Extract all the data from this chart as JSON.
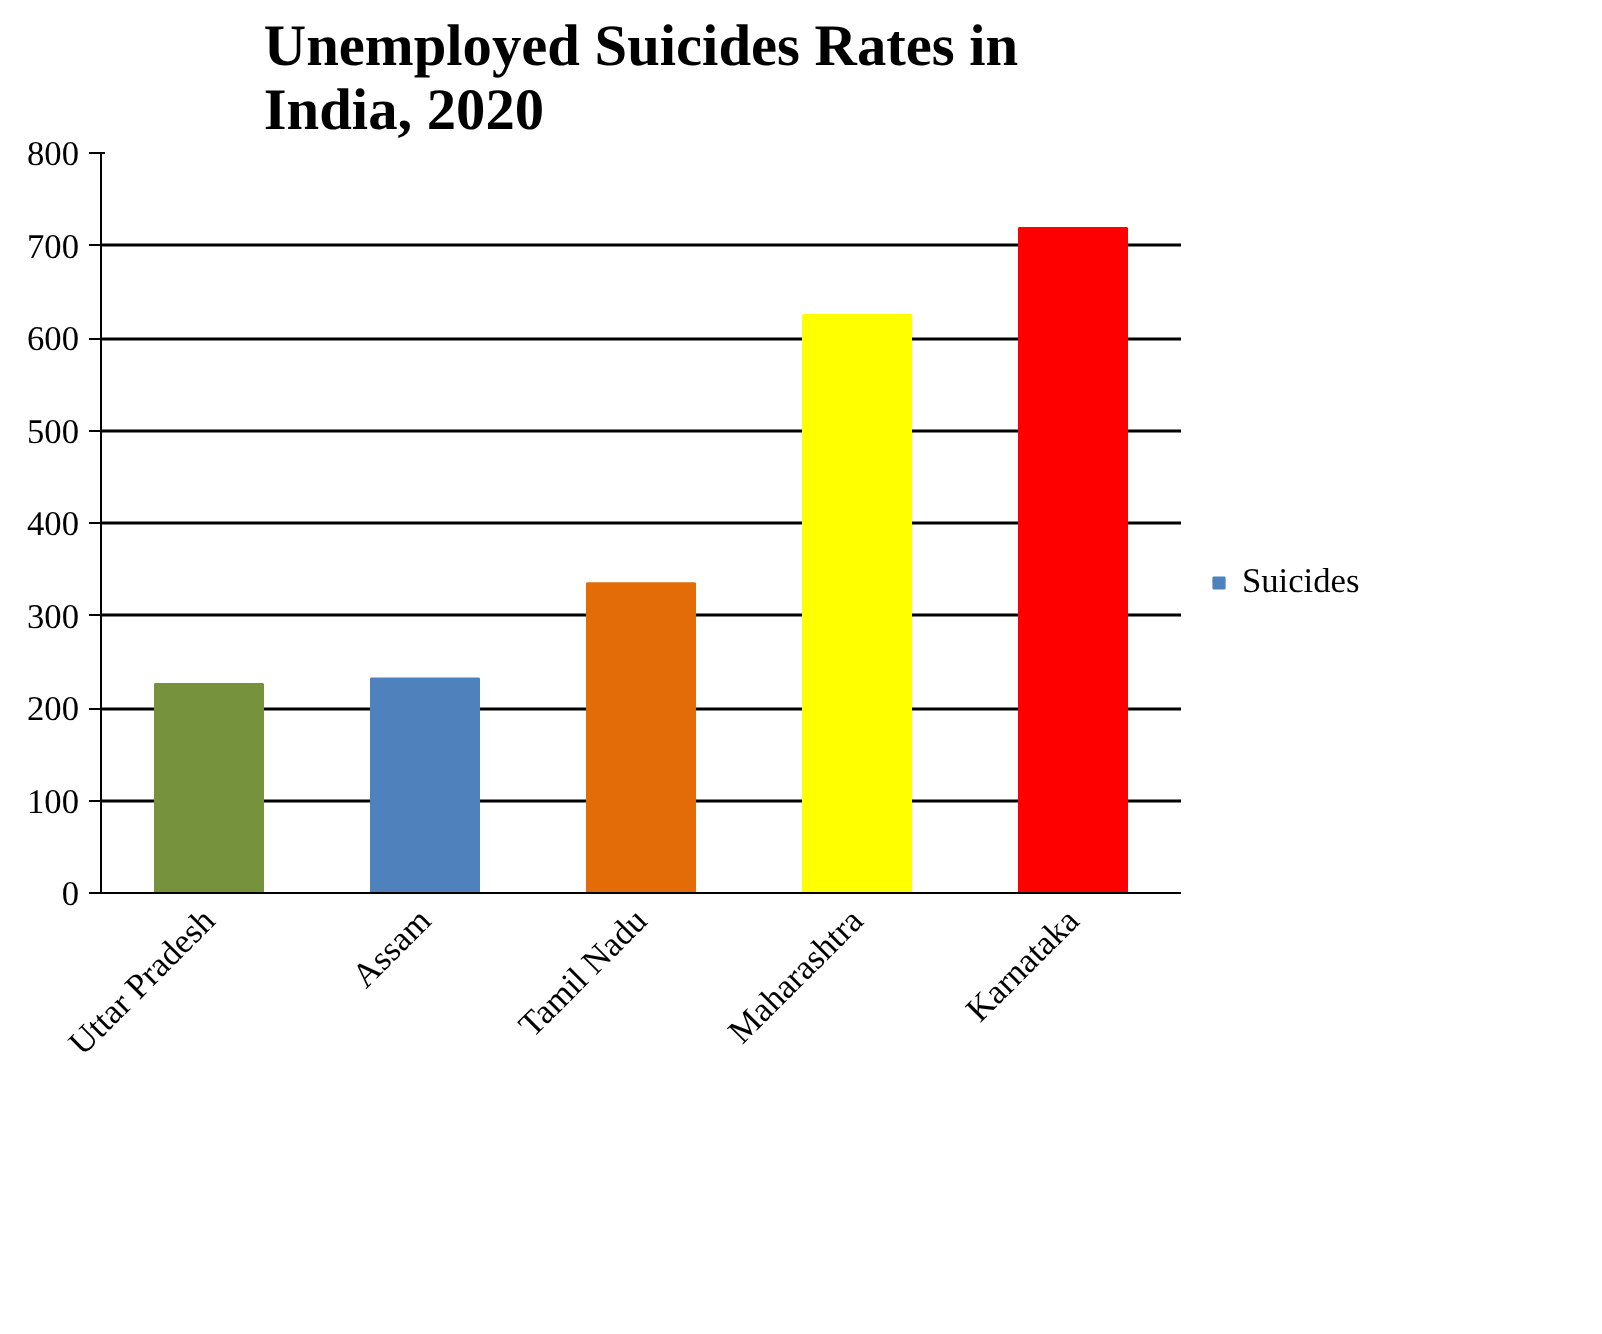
{
  "chart_data": {
    "type": "bar",
    "title": "Unemployed Suicides Rates in India, 2020",
    "categories": [
      "Uttar Pradesh",
      "Assam",
      "Tamil Nadu",
      "Maharashtra",
      "Karnataka"
    ],
    "series": [
      {
        "name": "Suicides",
        "color": "#4f81bd",
        "colors": [
          "#76923c",
          "#4f81bd",
          "#e36c09",
          "#ffff00",
          "#ff0000"
        ],
        "values": [
          226,
          232,
          335,
          625,
          719
        ]
      }
    ],
    "ylim": [
      0,
      800
    ],
    "yticks": [
      0,
      100,
      200,
      300,
      400,
      500,
      600,
      700,
      800
    ],
    "grid": "y",
    "legend": "right"
  }
}
